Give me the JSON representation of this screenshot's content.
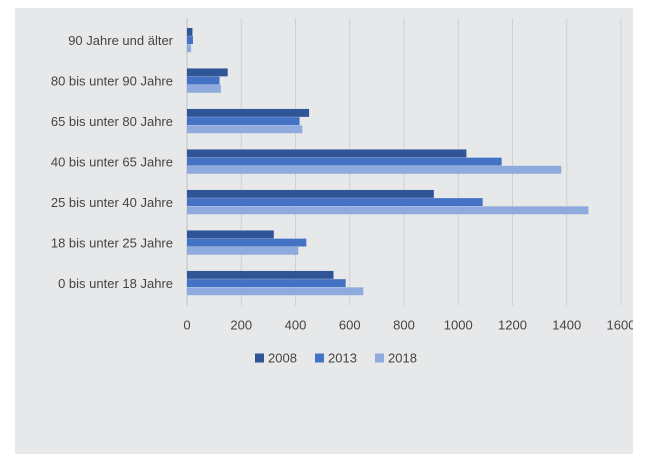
{
  "chart_data": {
    "type": "bar",
    "orientation": "horizontal",
    "categories": [
      "90 Jahre und älter",
      "80 bis unter 90 Jahre",
      "65 bis unter 80 Jahre",
      "40 bis unter 65 Jahre",
      "25 bis unter 40 Jahre",
      "18 bis unter 25 Jahre",
      "0 bis unter 18 Jahre"
    ],
    "series": [
      {
        "name": "2008",
        "color": "#2f5597",
        "values": [
          20,
          150,
          450,
          1030,
          910,
          320,
          540
        ]
      },
      {
        "name": "2013",
        "color": "#4472c4",
        "values": [
          22,
          120,
          415,
          1160,
          1090,
          440,
          585
        ]
      },
      {
        "name": "2018",
        "color": "#8faadc",
        "values": [
          15,
          125,
          425,
          1380,
          1480,
          410,
          650
        ]
      }
    ],
    "xticks": [
      "0",
      "200",
      "400",
      "600",
      "800",
      "1000",
      "1200",
      "1400",
      "1600"
    ],
    "xlim": [
      0,
      1600
    ],
    "grid": "vertical",
    "legend": "bottom"
  }
}
